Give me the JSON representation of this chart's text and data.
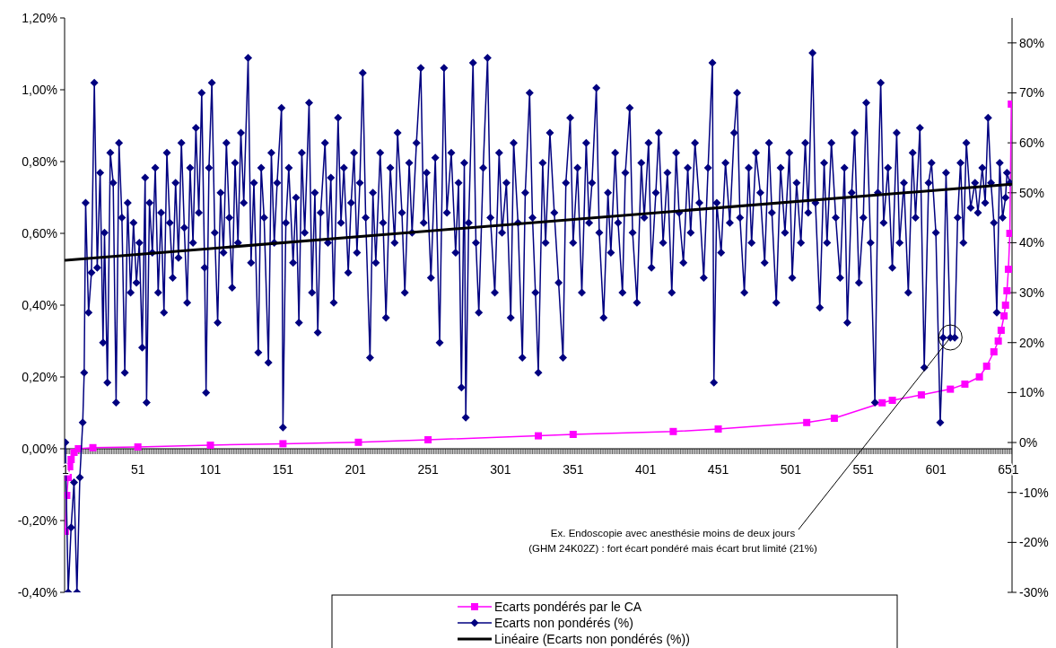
{
  "chart_data": {
    "type": "line",
    "xlim": [
      0.5,
      653.5
    ],
    "xticks": [
      1,
      51,
      101,
      151,
      201,
      251,
      301,
      351,
      401,
      451,
      501,
      551,
      601,
      651
    ],
    "ylim": [
      -0.4,
      1.2
    ],
    "yticks": [
      {
        "value": -0.4,
        "label": "-0,40%"
      },
      {
        "value": -0.2,
        "label": "-0,20%"
      },
      {
        "value": 0,
        "label": "0,00%"
      },
      {
        "value": 0.2,
        "label": "0,20%"
      },
      {
        "value": 0.4,
        "label": "0,40%"
      },
      {
        "value": 0.6,
        "label": "0,60%"
      },
      {
        "value": 0.8,
        "label": "0,80%"
      },
      {
        "value": 1.0,
        "label": "1,00%"
      },
      {
        "value": 1.2,
        "label": "1,20%"
      }
    ],
    "y2lim": [
      -30,
      85
    ],
    "y2ticks": [
      {
        "value": -30,
        "label": "-30%"
      },
      {
        "value": -20,
        "label": "-20%"
      },
      {
        "value": -10,
        "label": "-10%"
      },
      {
        "value": 0,
        "label": "0%"
      },
      {
        "value": 10,
        "label": "10%"
      },
      {
        "value": 20,
        "label": "20%"
      },
      {
        "value": 30,
        "label": "30%"
      },
      {
        "value": 40,
        "label": "40%"
      },
      {
        "value": 50,
        "label": "50%"
      },
      {
        "value": 60,
        "label": "60%"
      },
      {
        "value": 70,
        "label": "70%"
      },
      {
        "value": 80,
        "label": "80%"
      }
    ],
    "grid": false,
    "legend": "bottom",
    "annotations": [
      {
        "text": "Ex. Endoscopie avec anesthésie moins de deux jours\n(GHM 24K02Z) : fort écart pondéré mais écart brut limité (21%)",
        "x": 611,
        "y": 0.31
      }
    ],
    "series": [
      {
        "name": "Ecarts pondérés par le CA",
        "color": "#ff00ff",
        "marker": "square",
        "x": [
          1,
          2,
          3,
          4,
          5,
          7,
          10,
          20,
          51,
          101,
          151,
          203,
          251,
          327,
          351,
          420,
          451,
          512,
          531,
          564,
          571,
          591,
          611,
          621,
          631,
          636,
          641,
          644,
          646,
          648,
          649,
          650,
          651,
          652,
          653
        ],
        "values": [
          -0.23,
          -0.13,
          -0.08,
          -0.05,
          -0.03,
          -0.01,
          0,
          0.003,
          0.005,
          0.01,
          0.014,
          0.018,
          0.025,
          0.036,
          0.04,
          0.048,
          0.055,
          0.073,
          0.085,
          0.128,
          0.135,
          0.15,
          0.166,
          0.18,
          0.2,
          0.23,
          0.27,
          0.3,
          0.33,
          0.37,
          0.4,
          0.44,
          0.5,
          0.6,
          0.96
        ]
      },
      {
        "name": "Ecarts non pondérés (%)",
        "color": "#000080",
        "marker": "diamond",
        "axis": "y2",
        "x": [
          1,
          3,
          5,
          7,
          9,
          11,
          13,
          14,
          15,
          17,
          19,
          21,
          23,
          25,
          27,
          28,
          30,
          32,
          34,
          36,
          38,
          40,
          42,
          44,
          46,
          48,
          50,
          52,
          54,
          56,
          57,
          59,
          61,
          63,
          65,
          67,
          69,
          71,
          73,
          75,
          77,
          79,
          81,
          83,
          85,
          87,
          89,
          91,
          93,
          95,
          97,
          98,
          100,
          102,
          104,
          106,
          108,
          110,
          112,
          114,
          116,
          118,
          120,
          122,
          124,
          127,
          129,
          131,
          134,
          136,
          138,
          141,
          143,
          145,
          147,
          150,
          151,
          153,
          155,
          158,
          160,
          162,
          164,
          166,
          169,
          171,
          173,
          175,
          177,
          180,
          182,
          184,
          186,
          189,
          191,
          193,
          196,
          198,
          200,
          202,
          204,
          206,
          208,
          211,
          213,
          215,
          218,
          220,
          222,
          225,
          228,
          230,
          233,
          235,
          238,
          240,
          243,
          246,
          248,
          250,
          253,
          256,
          259,
          262,
          264,
          267,
          270,
          272,
          274,
          276,
          277,
          279,
          282,
          284,
          286,
          289,
          292,
          294,
          297,
          300,
          302,
          305,
          308,
          310,
          313,
          316,
          318,
          321,
          323,
          325,
          327,
          330,
          332,
          335,
          338,
          341,
          344,
          346,
          349,
          351,
          354,
          357,
          360,
          362,
          364,
          367,
          369,
          372,
          375,
          377,
          380,
          382,
          385,
          387,
          390,
          392,
          395,
          398,
          400,
          403,
          405,
          408,
          410,
          413,
          416,
          419,
          422,
          424,
          427,
          430,
          432,
          435,
          438,
          441,
          444,
          447,
          448,
          450,
          453,
          456,
          459,
          462,
          464,
          466,
          469,
          472,
          474,
          477,
          480,
          483,
          486,
          488,
          491,
          494,
          497,
          500,
          502,
          505,
          508,
          511,
          513,
          516,
          518,
          521,
          524,
          526,
          529,
          532,
          535,
          538,
          540,
          543,
          545,
          548,
          551,
          553,
          556,
          559,
          561,
          563,
          565,
          568,
          571,
          574,
          576,
          579,
          582,
          585,
          587,
          590,
          593,
          596,
          598,
          601,
          604,
          606,
          608,
          611,
          614,
          616,
          618,
          620,
          622,
          625,
          628,
          630,
          633,
          635,
          637,
          639,
          641,
          643,
          645,
          647,
          649,
          650,
          652
        ],
        "values": [
          0,
          -30,
          -17,
          -8,
          -30,
          -7,
          4,
          14,
          48,
          26,
          34,
          72,
          35,
          54,
          20,
          42,
          12,
          58,
          52,
          8,
          60,
          45,
          14,
          48,
          30,
          44,
          32,
          40,
          19,
          53,
          8,
          48,
          38,
          55,
          30,
          46,
          26,
          58,
          44,
          33,
          52,
          37,
          60,
          43,
          28,
          55,
          40,
          63,
          46,
          70,
          35,
          10,
          55,
          72,
          42,
          24,
          50,
          38,
          60,
          45,
          31,
          56,
          40,
          62,
          48,
          77,
          36,
          52,
          18,
          55,
          45,
          16,
          58,
          40,
          52,
          67,
          3,
          44,
          55,
          36,
          49,
          24,
          58,
          42,
          68,
          30,
          50,
          22,
          46,
          60,
          40,
          53,
          28,
          65,
          44,
          55,
          34,
          48,
          58,
          38,
          52,
          74,
          45,
          17,
          50,
          36,
          58,
          44,
          25,
          55,
          40,
          62,
          46,
          30,
          56,
          42,
          60,
          75,
          44,
          54,
          33,
          57,
          20,
          75,
          46,
          58,
          38,
          52,
          11,
          56,
          5,
          44,
          76,
          40,
          26,
          55,
          77,
          45,
          30,
          58,
          42,
          52,
          25,
          60,
          44,
          17,
          50,
          70,
          45,
          30,
          14,
          56,
          40,
          62,
          46,
          32,
          17,
          52,
          65,
          40,
          55,
          30,
          60,
          44,
          52,
          71,
          42,
          25,
          50,
          38,
          58,
          44,
          30,
          54,
          67,
          42,
          28,
          56,
          45,
          60,
          35,
          50,
          62,
          40,
          54,
          30,
          58,
          46,
          36,
          55,
          42,
          60,
          48,
          33,
          55,
          76,
          12,
          48,
          38,
          56,
          44,
          62,
          70,
          45,
          30,
          55,
          40,
          58,
          50,
          36,
          60,
          46,
          28,
          55,
          42,
          58,
          33,
          52,
          40,
          60,
          46,
          78,
          48,
          27,
          56,
          40,
          60,
          45,
          33,
          55,
          24,
          50,
          62,
          32,
          45,
          68,
          40,
          8,
          50,
          72,
          44,
          55,
          35,
          62,
          40,
          52,
          30,
          58,
          45,
          63,
          15,
          52,
          56,
          42,
          4,
          21,
          54,
          21,
          21,
          45,
          56,
          40,
          60,
          47,
          52,
          46,
          55,
          48,
          65,
          52,
          44,
          26,
          56,
          45,
          49,
          54,
          52
        ]
      },
      {
        "name": "Linéaire (Ecarts non pondérés (%))",
        "color": "#000000",
        "marker": "none",
        "axis": "y2",
        "x": [
          1,
          653
        ],
        "values": [
          36.5,
          51.7
        ]
      }
    ]
  }
}
